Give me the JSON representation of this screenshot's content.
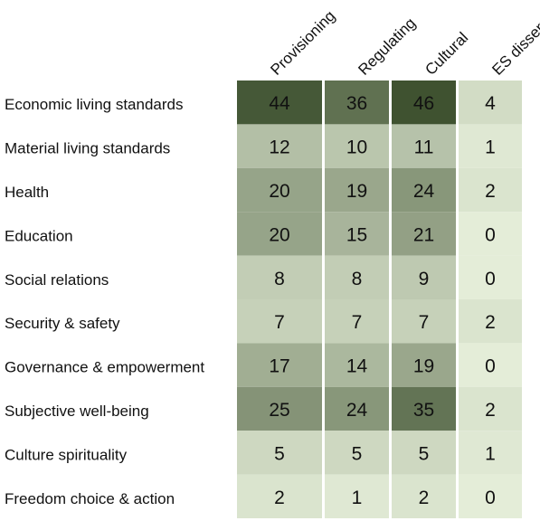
{
  "chart_data": {
    "type": "heatmap",
    "x_categories": [
      "Provisioning",
      "Regulating",
      "Cultural",
      "ES disservice"
    ],
    "y_categories": [
      "Economic living standards",
      "Material living standards",
      "Health",
      "Education",
      "Social relations",
      "Security & safety",
      "Governance & empowerment",
      "Subjective well-being",
      "Culture spirituality",
      "Freedom choice & action"
    ],
    "values": [
      [
        44,
        36,
        46,
        4
      ],
      [
        12,
        10,
        11,
        1
      ],
      [
        20,
        19,
        24,
        2
      ],
      [
        20,
        15,
        21,
        0
      ],
      [
        8,
        8,
        9,
        0
      ],
      [
        7,
        7,
        7,
        2
      ],
      [
        17,
        14,
        19,
        0
      ],
      [
        25,
        24,
        35,
        2
      ],
      [
        5,
        5,
        5,
        1
      ],
      [
        2,
        1,
        2,
        0
      ]
    ],
    "color_scale": {
      "low": "#e4edd8",
      "high": "#3f5230",
      "min": 0,
      "max": 46
    },
    "title": "",
    "xlabel": "",
    "ylabel": "",
    "legend": "none",
    "grid": false
  }
}
